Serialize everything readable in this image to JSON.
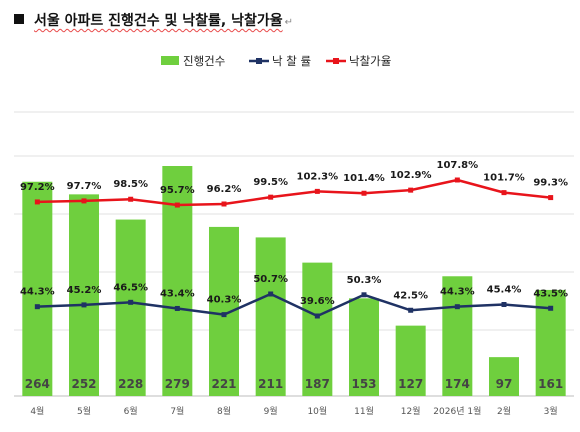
{
  "header": {
    "title": "서울 아파트 진행건수 및 낙찰률, 낙찰가율",
    "return_mark": "↵"
  },
  "chart_data": {
    "type": "bar",
    "title": "서울 아파트 진행건수 및 낙찰률, 낙찰가율",
    "categories": [
      "4월",
      "5월",
      "6월",
      "7월",
      "8월",
      "9월",
      "10월",
      "11월",
      "12월",
      "2026년 1월",
      "2월",
      "3월"
    ],
    "legend_position": "top",
    "grid": true,
    "series": [
      {
        "name": "진행건수",
        "type": "bar",
        "color": "#6fcf3e",
        "values": [
          264,
          252,
          228,
          279,
          221,
          211,
          187,
          153,
          127,
          174,
          97,
          161
        ],
        "labels": [
          "264",
          "252",
          "228",
          "279",
          "221",
          "211",
          "187",
          "153",
          "127",
          "174",
          "97",
          "161"
        ]
      },
      {
        "name": "낙 찰 률",
        "type": "line",
        "color": "#1f3264",
        "values": [
          44.3,
          45.2,
          46.5,
          43.4,
          40.3,
          50.7,
          39.6,
          50.3,
          42.5,
          44.3,
          45.4,
          43.5
        ],
        "labels": [
          "44.3%",
          "45.2%",
          "46.5%",
          "43.4%",
          "40.3%",
          "50.7%",
          "39.6%",
          "50.3%",
          "42.5%",
          "44.3%",
          "45.4%",
          "43.5%"
        ]
      },
      {
        "name": "낙찰가율",
        "type": "line",
        "color": "#e8141b",
        "values": [
          97.2,
          97.7,
          98.5,
          95.7,
          96.2,
          99.5,
          102.3,
          101.4,
          102.9,
          107.8,
          101.7,
          99.3
        ],
        "labels": [
          "97.2%",
          "97.7%",
          "98.5%",
          "95.7%",
          "96.2%",
          "99.5%",
          "102.3%",
          "101.4%",
          "102.9%",
          "107.8%",
          "101.7%",
          "99.3%"
        ]
      }
    ]
  }
}
